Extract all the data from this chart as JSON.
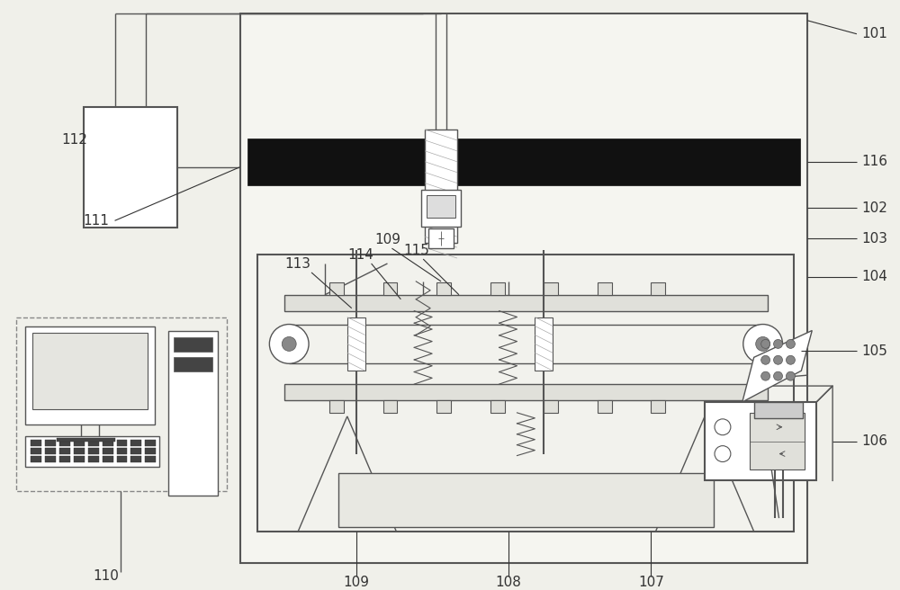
{
  "bg_color": "#f0f0ea",
  "lc": "#555555",
  "lc_dark": "#333333",
  "black": "#111111",
  "white": "#ffffff",
  "light_gray": "#e8e8e2",
  "gray": "#aaaaaa"
}
